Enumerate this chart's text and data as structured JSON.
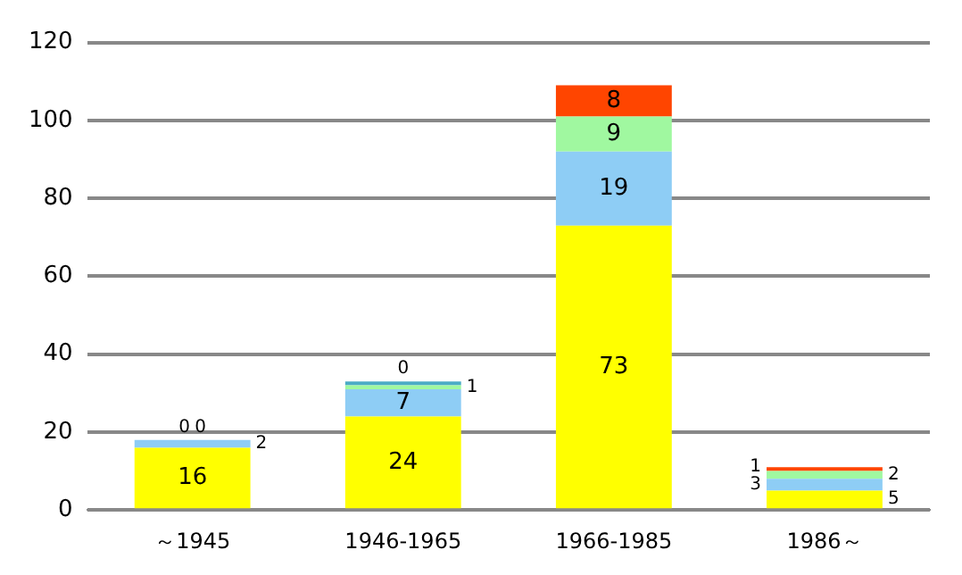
{
  "chart_data": {
    "type": "bar",
    "stacked": true,
    "categories": [
      "～1945",
      "1946-1965",
      "1966-1985",
      "1986～"
    ],
    "series": [
      {
        "color": "#ffff00",
        "values": [
          16,
          24,
          73,
          5
        ],
        "value_labels": [
          "16",
          "24",
          "73",
          "5"
        ]
      },
      {
        "color": "#8ecdf5",
        "values": [
          2,
          7,
          19,
          3
        ],
        "value_labels": [
          "2",
          "7",
          "19",
          "3"
        ]
      },
      {
        "color": "#a0f8a0",
        "values": [
          0,
          1,
          9,
          2
        ],
        "value_labels": [
          "0",
          "1",
          "9",
          "2"
        ]
      },
      {
        "color": "#4bacc6",
        "values": [
          null,
          1,
          null,
          null
        ]
      },
      {
        "color": "#ff4500",
        "values": [
          0,
          0,
          8,
          1
        ],
        "value_labels": [
          "0",
          "0",
          "8",
          "1"
        ]
      }
    ],
    "ylim": [
      0,
      120
    ],
    "yticks": [
      0,
      20,
      40,
      60,
      80,
      100,
      120
    ],
    "grid": "y",
    "legend": false
  }
}
